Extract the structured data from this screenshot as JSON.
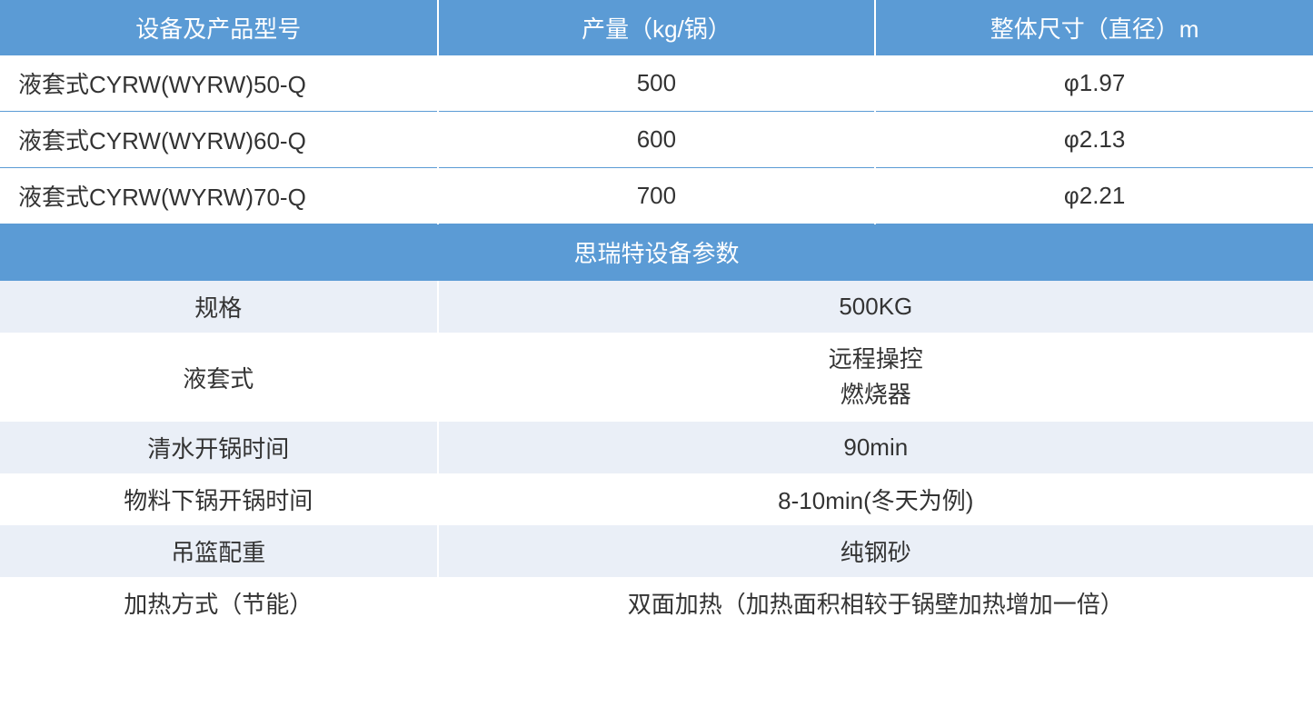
{
  "table1": {
    "headers": [
      "设备及产品型号",
      "产量（kg/锅）",
      "整体尺寸（直径）m"
    ],
    "rows": [
      [
        "液套式CYRW(WYRW)50-Q",
        "500",
        "φ1.97"
      ],
      [
        "液套式CYRW(WYRW)60-Q",
        "600",
        "φ2.13"
      ],
      [
        "液套式CYRW(WYRW)70-Q",
        "700",
        "φ2.21"
      ]
    ],
    "header_bg": "#5b9bd5",
    "header_text_color": "#ffffff",
    "border_color": "#5b9bd5",
    "cell_text_color": "#333333",
    "font_size": 26,
    "column_widths": [
      "33.33%",
      "33.33%",
      "33.34%"
    ]
  },
  "section_title": "思瑞特设备参数",
  "table2": {
    "rows": [
      {
        "label": "规格",
        "value": "500KG",
        "shade": "odd"
      },
      {
        "label": "液套式",
        "value": "远程操控\n燃烧器",
        "shade": "even",
        "multiline": true
      },
      {
        "label": "清水开锅时间",
        "value": "90min",
        "shade": "odd"
      },
      {
        "label": "物料下锅开锅时间",
        "value": "8-10min(冬天为例)",
        "shade": "even"
      },
      {
        "label": "吊篮配重",
        "value": "纯钢砂",
        "shade": "odd"
      },
      {
        "label": "加热方式（节能）",
        "value": "双面加热（加热面积相较于锅壁加热增加一倍）",
        "shade": "even"
      }
    ],
    "odd_bg": "#eaeff7",
    "even_bg": "#ffffff",
    "text_color": "#333333",
    "font_size": 26,
    "label_width": "33.33%",
    "value_width": "66.67%"
  },
  "styling": {
    "header_bg": "#5b9bd5",
    "header_fg": "#ffffff",
    "row_border": "#5b9bd5",
    "alt_row_bg": "#eaeff7",
    "font_family": "Microsoft YaHei"
  }
}
